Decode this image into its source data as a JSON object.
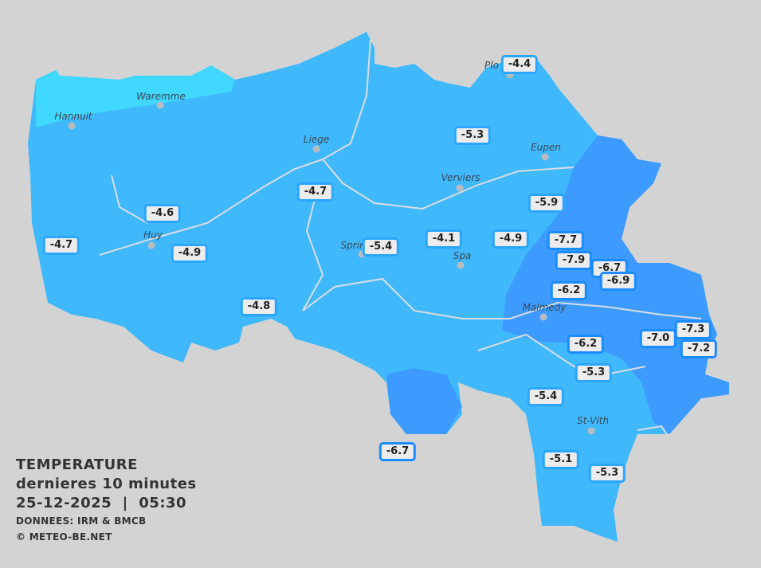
{
  "legend": {
    "title": "TEMPERATURE",
    "subtitle": "dernieres 10 minutes",
    "datetime": "25-12-2025  |  05:30",
    "source": "DONNEES: IRM & BMCB",
    "copyright": "© METEO-BE.NET"
  },
  "colors": {
    "background": "#d3d3d3",
    "zone_mild": "#40d8ff",
    "zone_main": "#40b8fc",
    "zone_cold": "#3d9bff"
  },
  "cities": [
    "Hannuit",
    "Waremme",
    "Liege",
    "Plo",
    "Eupen",
    "Verviers",
    "Huy",
    "Sprin",
    "Spa",
    "Malmedy",
    "St-Vith"
  ],
  "stations": [
    "-4.4",
    "-5.3",
    "-4.7",
    "-5.9",
    "-4.6",
    "-4.7",
    "-4.9",
    "-5.4",
    "-4.1",
    "-4.9",
    "-7.7",
    "-7.9",
    "-6.7",
    "-6.9",
    "-6.2",
    "-4.8",
    "-7.0",
    "-7.3",
    "-7.2",
    "-6.2",
    "-5.3",
    "-5.4",
    "-6.7",
    "-5.1",
    "-5.3"
  ]
}
